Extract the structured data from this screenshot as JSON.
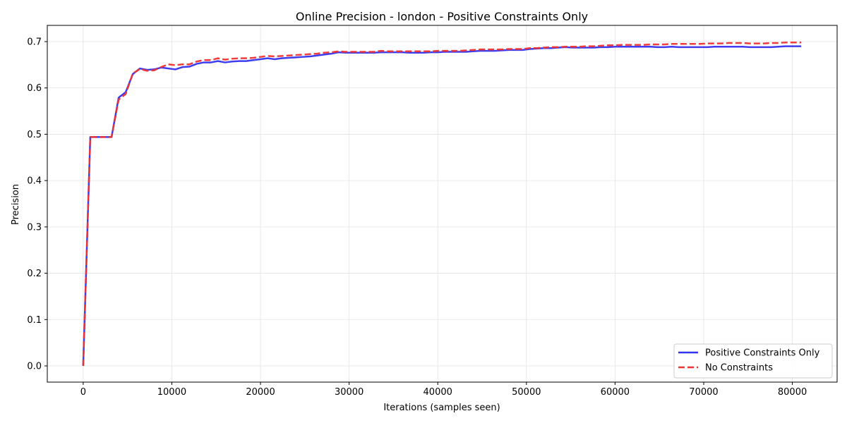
{
  "chart_data": {
    "type": "line",
    "title": "Online Precision - london - Positive Constraints Only",
    "xlabel": "Iterations (samples seen)",
    "ylabel": "Precision",
    "xlim": [
      -4050,
      85050
    ],
    "ylim": [
      -0.035,
      0.735
    ],
    "xticks": [
      0,
      10000,
      20000,
      30000,
      40000,
      50000,
      60000,
      70000,
      80000
    ],
    "yticks": [
      0.0,
      0.1,
      0.2,
      0.3,
      0.4,
      0.5,
      0.6,
      0.7
    ],
    "xtick_labels": [
      "0",
      "10000",
      "20000",
      "30000",
      "40000",
      "50000",
      "60000",
      "70000",
      "80000"
    ],
    "ytick_labels": [
      "0.0",
      "0.1",
      "0.2",
      "0.3",
      "0.4",
      "0.5",
      "0.6",
      "0.7"
    ],
    "grid": true,
    "legend_position": "bottom-right",
    "series": [
      {
        "name": "Positive Constraints Only",
        "color": "#3333ee",
        "style": "solid",
        "points": [
          [
            0,
            0.0
          ],
          [
            800,
            0.494
          ],
          [
            1600,
            0.494
          ],
          [
            2400,
            0.494
          ],
          [
            3200,
            0.494
          ],
          [
            4000,
            0.579
          ],
          [
            4800,
            0.591
          ],
          [
            5600,
            0.63
          ],
          [
            6400,
            0.642
          ],
          [
            7200,
            0.639
          ],
          [
            8000,
            0.64
          ],
          [
            8800,
            0.644
          ],
          [
            9600,
            0.642
          ],
          [
            10400,
            0.64
          ],
          [
            11200,
            0.645
          ],
          [
            12000,
            0.646
          ],
          [
            12800,
            0.652
          ],
          [
            13600,
            0.655
          ],
          [
            14400,
            0.655
          ],
          [
            15200,
            0.658
          ],
          [
            16000,
            0.655
          ],
          [
            16800,
            0.657
          ],
          [
            17600,
            0.658
          ],
          [
            18400,
            0.658
          ],
          [
            19200,
            0.66
          ],
          [
            20000,
            0.662
          ],
          [
            20800,
            0.664
          ],
          [
            21600,
            0.662
          ],
          [
            22400,
            0.664
          ],
          [
            23200,
            0.665
          ],
          [
            24000,
            0.666
          ],
          [
            24800,
            0.667
          ],
          [
            25600,
            0.668
          ],
          [
            26400,
            0.67
          ],
          [
            27200,
            0.672
          ],
          [
            28000,
            0.674
          ],
          [
            28800,
            0.677
          ],
          [
            29600,
            0.676
          ],
          [
            30400,
            0.676
          ],
          [
            31200,
            0.676
          ],
          [
            32000,
            0.676
          ],
          [
            32800,
            0.676
          ],
          [
            33600,
            0.677
          ],
          [
            34400,
            0.677
          ],
          [
            35200,
            0.677
          ],
          [
            36000,
            0.677
          ],
          [
            36800,
            0.676
          ],
          [
            37600,
            0.676
          ],
          [
            38400,
            0.676
          ],
          [
            39200,
            0.677
          ],
          [
            40000,
            0.677
          ],
          [
            40800,
            0.678
          ],
          [
            41600,
            0.678
          ],
          [
            42400,
            0.678
          ],
          [
            43200,
            0.678
          ],
          [
            44000,
            0.679
          ],
          [
            44800,
            0.68
          ],
          [
            45600,
            0.68
          ],
          [
            46400,
            0.68
          ],
          [
            47200,
            0.681
          ],
          [
            48000,
            0.682
          ],
          [
            48800,
            0.682
          ],
          [
            49600,
            0.682
          ],
          [
            50400,
            0.684
          ],
          [
            51200,
            0.685
          ],
          [
            52000,
            0.686
          ],
          [
            52800,
            0.686
          ],
          [
            53600,
            0.687
          ],
          [
            54400,
            0.688
          ],
          [
            55200,
            0.687
          ],
          [
            56000,
            0.687
          ],
          [
            56800,
            0.687
          ],
          [
            57600,
            0.687
          ],
          [
            58400,
            0.688
          ],
          [
            59200,
            0.688
          ],
          [
            60000,
            0.689
          ],
          [
            60800,
            0.689
          ],
          [
            61600,
            0.689
          ],
          [
            62400,
            0.689
          ],
          [
            63200,
            0.689
          ],
          [
            64000,
            0.689
          ],
          [
            64800,
            0.688
          ],
          [
            65600,
            0.688
          ],
          [
            66400,
            0.689
          ],
          [
            67200,
            0.688
          ],
          [
            68000,
            0.688
          ],
          [
            68800,
            0.688
          ],
          [
            69600,
            0.688
          ],
          [
            70400,
            0.688
          ],
          [
            71200,
            0.689
          ],
          [
            72000,
            0.689
          ],
          [
            72800,
            0.689
          ],
          [
            73600,
            0.689
          ],
          [
            74400,
            0.689
          ],
          [
            75200,
            0.688
          ],
          [
            76000,
            0.688
          ],
          [
            76800,
            0.688
          ],
          [
            77600,
            0.688
          ],
          [
            78400,
            0.689
          ],
          [
            79200,
            0.69
          ],
          [
            80000,
            0.69
          ],
          [
            81000,
            0.69
          ]
        ]
      },
      {
        "name": "No Constraints",
        "color": "#ee3333",
        "style": "dashed",
        "points": [
          [
            0,
            0.0
          ],
          [
            800,
            0.494
          ],
          [
            1600,
            0.494
          ],
          [
            2400,
            0.494
          ],
          [
            3200,
            0.494
          ],
          [
            4000,
            0.575
          ],
          [
            4800,
            0.587
          ],
          [
            5600,
            0.631
          ],
          [
            6400,
            0.641
          ],
          [
            7200,
            0.637
          ],
          [
            8000,
            0.638
          ],
          [
            8800,
            0.645
          ],
          [
            9600,
            0.651
          ],
          [
            10400,
            0.649
          ],
          [
            11200,
            0.651
          ],
          [
            12000,
            0.651
          ],
          [
            12800,
            0.657
          ],
          [
            13600,
            0.66
          ],
          [
            14400,
            0.66
          ],
          [
            15200,
            0.664
          ],
          [
            16000,
            0.661
          ],
          [
            16800,
            0.663
          ],
          [
            17600,
            0.664
          ],
          [
            18400,
            0.664
          ],
          [
            19200,
            0.665
          ],
          [
            20000,
            0.667
          ],
          [
            20800,
            0.669
          ],
          [
            21600,
            0.668
          ],
          [
            22400,
            0.669
          ],
          [
            23200,
            0.67
          ],
          [
            24000,
            0.671
          ],
          [
            24800,
            0.672
          ],
          [
            25600,
            0.673
          ],
          [
            26400,
            0.674
          ],
          [
            27200,
            0.676
          ],
          [
            28000,
            0.677
          ],
          [
            28800,
            0.679
          ],
          [
            29600,
            0.678
          ],
          [
            30400,
            0.678
          ],
          [
            31200,
            0.678
          ],
          [
            32000,
            0.678
          ],
          [
            32800,
            0.678
          ],
          [
            33600,
            0.68
          ],
          [
            34400,
            0.679
          ],
          [
            35200,
            0.679
          ],
          [
            36000,
            0.679
          ],
          [
            36800,
            0.679
          ],
          [
            37600,
            0.679
          ],
          [
            38400,
            0.679
          ],
          [
            39200,
            0.679
          ],
          [
            40000,
            0.68
          ],
          [
            40800,
            0.68
          ],
          [
            41600,
            0.68
          ],
          [
            42400,
            0.68
          ],
          [
            43200,
            0.681
          ],
          [
            44000,
            0.682
          ],
          [
            44800,
            0.683
          ],
          [
            45600,
            0.683
          ],
          [
            46400,
            0.683
          ],
          [
            47200,
            0.683
          ],
          [
            48000,
            0.684
          ],
          [
            48800,
            0.684
          ],
          [
            49600,
            0.684
          ],
          [
            50400,
            0.686
          ],
          [
            51200,
            0.686
          ],
          [
            52000,
            0.687
          ],
          [
            52800,
            0.688
          ],
          [
            53600,
            0.688
          ],
          [
            54400,
            0.689
          ],
          [
            55200,
            0.689
          ],
          [
            56000,
            0.689
          ],
          [
            56800,
            0.69
          ],
          [
            57600,
            0.69
          ],
          [
            58400,
            0.691
          ],
          [
            59200,
            0.692
          ],
          [
            60000,
            0.692
          ],
          [
            60800,
            0.693
          ],
          [
            61600,
            0.693
          ],
          [
            62400,
            0.693
          ],
          [
            63200,
            0.693
          ],
          [
            64000,
            0.694
          ],
          [
            64800,
            0.694
          ],
          [
            65600,
            0.694
          ],
          [
            66400,
            0.695
          ],
          [
            67200,
            0.695
          ],
          [
            68000,
            0.695
          ],
          [
            68800,
            0.695
          ],
          [
            69600,
            0.695
          ],
          [
            70400,
            0.696
          ],
          [
            71200,
            0.696
          ],
          [
            72000,
            0.696
          ],
          [
            72800,
            0.697
          ],
          [
            73600,
            0.697
          ],
          [
            74400,
            0.697
          ],
          [
            75200,
            0.696
          ],
          [
            76000,
            0.696
          ],
          [
            76800,
            0.696
          ],
          [
            77600,
            0.697
          ],
          [
            78400,
            0.697
          ],
          [
            79200,
            0.698
          ],
          [
            80000,
            0.698
          ],
          [
            81000,
            0.698
          ]
        ]
      }
    ]
  }
}
